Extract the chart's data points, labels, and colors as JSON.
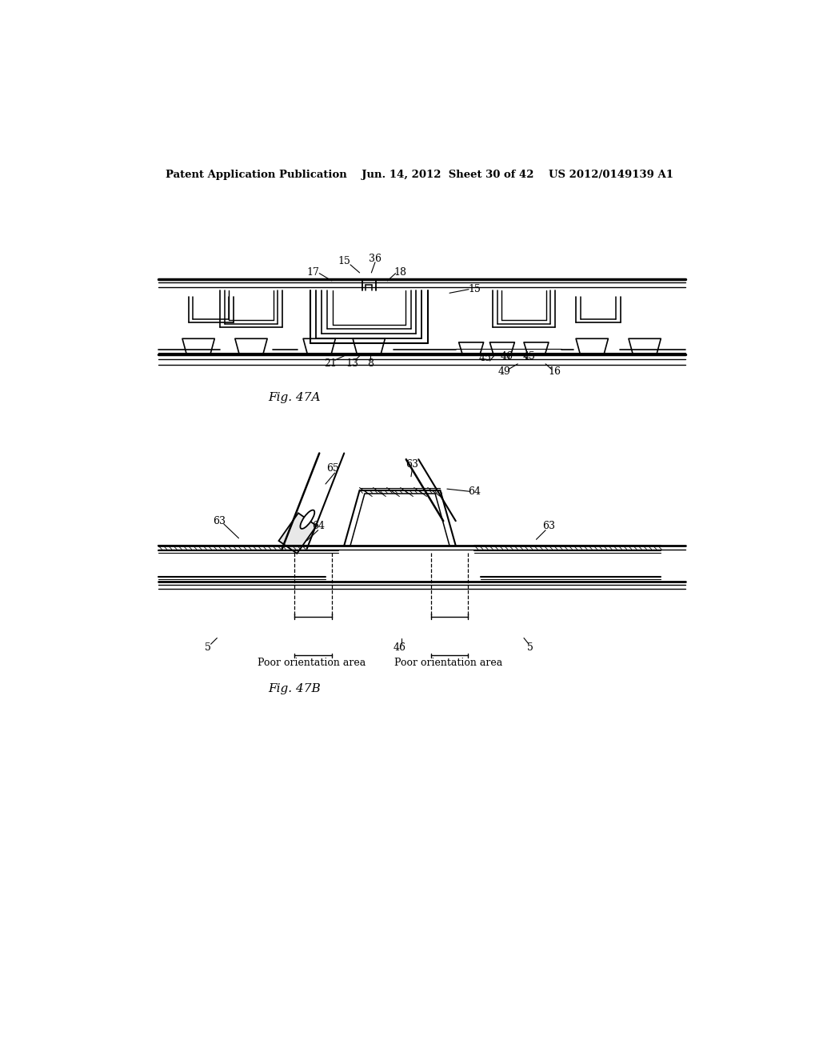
{
  "bg_color": "#ffffff",
  "line_color": "#000000",
  "header_text": "Patent Application Publication    Jun. 14, 2012  Sheet 30 of 42    US 2012/0149139 A1",
  "fig47a_label": "Fig. 47A",
  "fig47b_label": "Fig. 47B",
  "poor_orient_left": "Poor orientation area",
  "poor_orient_right": "Poor orientation area"
}
